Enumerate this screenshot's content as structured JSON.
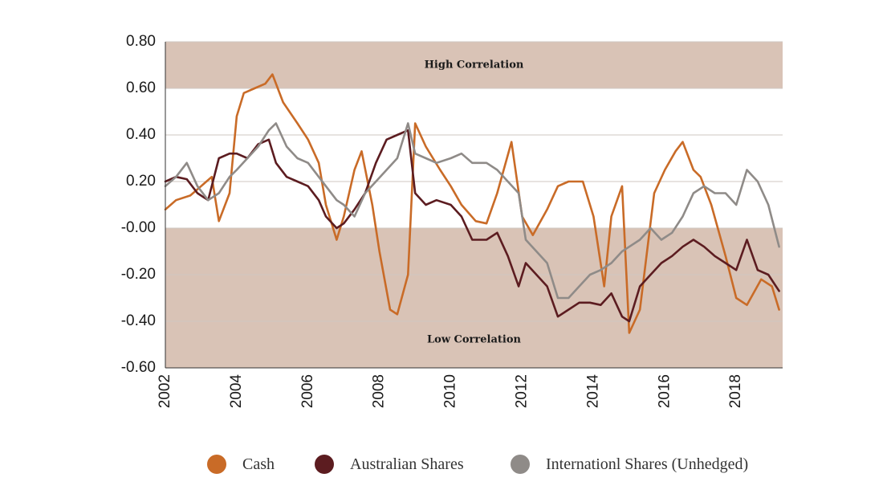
{
  "chart_data": {
    "type": "line",
    "title": "",
    "xlabel": "",
    "ylabel": "",
    "xlim": [
      2002,
      2019.3
    ],
    "ylim": [
      -0.6,
      0.8
    ],
    "y_ticks": [
      "0.80",
      "0.60",
      "0.40",
      "0.20",
      "-0.00",
      "-0.20",
      "-0.40",
      "-0.60"
    ],
    "x_ticks": [
      "2002",
      "2004",
      "2006",
      "2008",
      "2010",
      "2012",
      "2014",
      "2016",
      "2018"
    ],
    "grid": true,
    "legend_position": "bottom",
    "bands": [
      {
        "label": "High Correlation",
        "from": 0.6,
        "to": 0.8,
        "color": "#d9c3b6"
      },
      {
        "label": "Low Correlation",
        "from": -0.6,
        "to": 0.0,
        "color": "#d9c3b6"
      }
    ],
    "series": [
      {
        "name": "Cash",
        "color": "#c96b27",
        "x": [
          2002.0,
          2002.3,
          2002.7,
          2003.0,
          2003.3,
          2003.5,
          2003.8,
          2004.0,
          2004.2,
          2004.5,
          2004.8,
          2005.0,
          2005.3,
          2005.7,
          2006.0,
          2006.3,
          2006.5,
          2006.8,
          2007.0,
          2007.3,
          2007.5,
          2007.8,
          2008.0,
          2008.3,
          2008.5,
          2008.8,
          2009.0,
          2009.3,
          2009.7,
          2010.0,
          2010.3,
          2010.7,
          2011.0,
          2011.3,
          2011.7,
          2012.0,
          2012.3,
          2012.7,
          2013.0,
          2013.3,
          2013.7,
          2014.0,
          2014.3,
          2014.5,
          2014.8,
          2015.0,
          2015.3,
          2015.7,
          2016.0,
          2016.3,
          2016.5,
          2016.8,
          2017.0,
          2017.3,
          2017.7,
          2018.0,
          2018.3,
          2018.7,
          2019.0,
          2019.2
        ],
        "values": [
          0.08,
          0.12,
          0.14,
          0.18,
          0.22,
          0.03,
          0.15,
          0.48,
          0.58,
          0.6,
          0.62,
          0.66,
          0.54,
          0.45,
          0.38,
          0.28,
          0.1,
          -0.05,
          0.05,
          0.25,
          0.33,
          0.1,
          -0.1,
          -0.35,
          -0.37,
          -0.2,
          0.45,
          0.35,
          0.25,
          0.18,
          0.1,
          0.03,
          0.02,
          0.15,
          0.37,
          0.05,
          -0.03,
          0.08,
          0.18,
          0.2,
          0.2,
          0.05,
          -0.25,
          0.05,
          0.18,
          -0.45,
          -0.35,
          0.15,
          0.25,
          0.33,
          0.37,
          0.25,
          0.22,
          0.1,
          -0.12,
          -0.3,
          -0.33,
          -0.22,
          -0.25,
          -0.35
        ]
      },
      {
        "name": "Australian Shares",
        "color": "#5c1c20",
        "x": [
          2002.0,
          2002.3,
          2002.6,
          2002.9,
          2003.2,
          2003.5,
          2003.8,
          2004.0,
          2004.3,
          2004.6,
          2004.9,
          2005.1,
          2005.4,
          2005.7,
          2006.0,
          2006.3,
          2006.5,
          2006.8,
          2007.0,
          2007.3,
          2007.6,
          2007.9,
          2008.2,
          2008.5,
          2008.8,
          2009.0,
          2009.3,
          2009.6,
          2010.0,
          2010.3,
          2010.6,
          2011.0,
          2011.3,
          2011.6,
          2011.9,
          2012.1,
          2012.4,
          2012.7,
          2013.0,
          2013.3,
          2013.6,
          2013.9,
          2014.2,
          2014.5,
          2014.8,
          2015.0,
          2015.3,
          2015.6,
          2015.9,
          2016.2,
          2016.5,
          2016.8,
          2017.1,
          2017.4,
          2017.7,
          2018.0,
          2018.3,
          2018.6,
          2018.9,
          2019.2
        ],
        "values": [
          0.2,
          0.22,
          0.21,
          0.15,
          0.12,
          0.3,
          0.32,
          0.32,
          0.3,
          0.36,
          0.38,
          0.28,
          0.22,
          0.2,
          0.18,
          0.12,
          0.05,
          0.0,
          0.02,
          0.08,
          0.15,
          0.28,
          0.38,
          0.4,
          0.42,
          0.15,
          0.1,
          0.12,
          0.1,
          0.05,
          -0.05,
          -0.05,
          -0.02,
          -0.12,
          -0.25,
          -0.15,
          -0.2,
          -0.25,
          -0.38,
          -0.35,
          -0.32,
          -0.32,
          -0.33,
          -0.28,
          -0.38,
          -0.4,
          -0.25,
          -0.2,
          -0.15,
          -0.12,
          -0.08,
          -0.05,
          -0.08,
          -0.12,
          -0.15,
          -0.18,
          -0.05,
          -0.18,
          -0.2,
          -0.27
        ]
      },
      {
        "name": "Internationl Shares (Unhedged)",
        "color": "#8f8b88",
        "x": [
          2002.0,
          2002.3,
          2002.6,
          2002.9,
          2003.2,
          2003.5,
          2003.8,
          2004.0,
          2004.3,
          2004.6,
          2004.9,
          2005.1,
          2005.4,
          2005.7,
          2006.0,
          2006.3,
          2006.5,
          2006.8,
          2007.0,
          2007.3,
          2007.6,
          2007.9,
          2008.2,
          2008.5,
          2008.8,
          2009.0,
          2009.3,
          2009.6,
          2010.0,
          2010.3,
          2010.6,
          2011.0,
          2011.3,
          2011.6,
          2011.9,
          2012.1,
          2012.4,
          2012.7,
          2013.0,
          2013.3,
          2013.6,
          2013.9,
          2014.2,
          2014.5,
          2014.8,
          2015.0,
          2015.3,
          2015.6,
          2015.9,
          2016.2,
          2016.5,
          2016.8,
          2017.1,
          2017.4,
          2017.7,
          2018.0,
          2018.3,
          2018.6,
          2018.9,
          2019.2
        ],
        "values": [
          0.18,
          0.22,
          0.28,
          0.18,
          0.12,
          0.15,
          0.22,
          0.25,
          0.3,
          0.35,
          0.42,
          0.45,
          0.35,
          0.3,
          0.28,
          0.22,
          0.18,
          0.12,
          0.1,
          0.05,
          0.15,
          0.2,
          0.25,
          0.3,
          0.45,
          0.32,
          0.3,
          0.28,
          0.3,
          0.32,
          0.28,
          0.28,
          0.25,
          0.2,
          0.15,
          -0.05,
          -0.1,
          -0.15,
          -0.3,
          -0.3,
          -0.25,
          -0.2,
          -0.18,
          -0.15,
          -0.1,
          -0.08,
          -0.05,
          0.0,
          -0.05,
          -0.02,
          0.05,
          0.15,
          0.18,
          0.15,
          0.15,
          0.1,
          0.25,
          0.2,
          0.1,
          -0.08
        ]
      }
    ]
  }
}
